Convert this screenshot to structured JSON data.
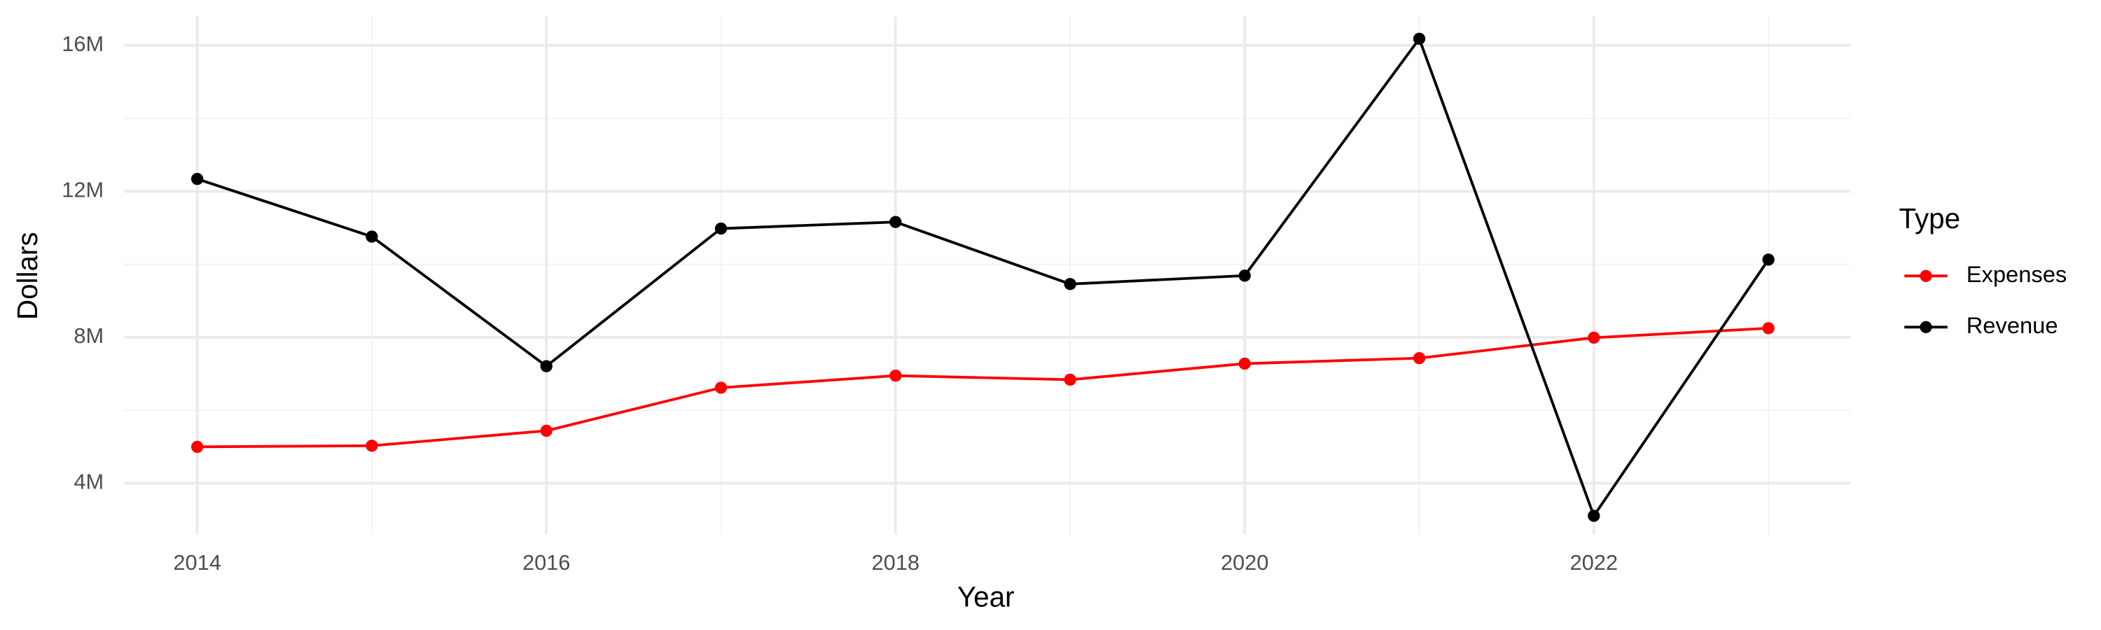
{
  "chart_data": {
    "type": "line",
    "x_label": "Year",
    "y_label": "Dollars",
    "x": [
      2014,
      2015,
      2016,
      2017,
      2018,
      2019,
      2020,
      2021,
      2022,
      2023
    ],
    "series": [
      {
        "name": "Expenses",
        "color": "#ff0000",
        "values": [
          5000000,
          5030000,
          5440000,
          6620000,
          6950000,
          6840000,
          7280000,
          7430000,
          7990000,
          8250000
        ]
      },
      {
        "name": "Revenue",
        "color": "#000000",
        "values": [
          12340000,
          10760000,
          7210000,
          10980000,
          11160000,
          9460000,
          9690000,
          16180000,
          3110000,
          10130000
        ]
      }
    ],
    "xlim": [
      2013.58,
      2023.47
    ],
    "xticks": [
      2014,
      2016,
      2018,
      2020,
      2022
    ],
    "ylim": [
      2600000,
      16800000
    ],
    "yticks": [
      {
        "value": 4000000,
        "label": "4M"
      },
      {
        "value": 8000000,
        "label": "8M"
      },
      {
        "value": 12000000,
        "label": "12M"
      },
      {
        "value": 16000000,
        "label": "16M"
      }
    ],
    "grid": true,
    "legend_title": "Type",
    "legend_position": "right"
  }
}
